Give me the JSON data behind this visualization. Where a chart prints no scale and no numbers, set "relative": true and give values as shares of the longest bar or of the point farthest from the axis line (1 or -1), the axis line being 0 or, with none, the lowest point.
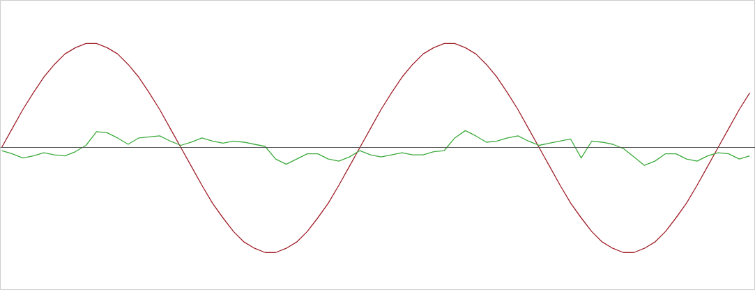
{
  "chart_data": {
    "type": "line",
    "relative": true,
    "categories": [
      null,
      null,
      null,
      null,
      null,
      null,
      null,
      null,
      null,
      null,
      null,
      null,
      null,
      null,
      null,
      null,
      null,
      null,
      null,
      null,
      null,
      null,
      null,
      null,
      null,
      null,
      null,
      null,
      null,
      null,
      null,
      null,
      null,
      null,
      null,
      null,
      null,
      null,
      null,
      null,
      null,
      null,
      null,
      null,
      null,
      null,
      null,
      null,
      null,
      null,
      null,
      null,
      null,
      null,
      null,
      null,
      null,
      null,
      null,
      null,
      null,
      null,
      null,
      null,
      null,
      null,
      null,
      null,
      null,
      null,
      null,
      null
    ],
    "series": [
      {
        "color": "#a0202a",
        "values": [
          0,
          0.18,
          0.36,
          0.52,
          0.67,
          0.79,
          0.89,
          0.95,
          0.99,
          0.99,
          0.95,
          0.89,
          0.79,
          0.67,
          0.52,
          0.36,
          0.18,
          0,
          -0.18,
          -0.36,
          -0.53,
          -0.67,
          -0.8,
          -0.9,
          -0.96,
          -1,
          -1,
          -0.96,
          -0.9,
          -0.8,
          -0.67,
          -0.53,
          -0.36,
          -0.18,
          0,
          0.18,
          0.36,
          0.52,
          0.67,
          0.79,
          0.89,
          0.95,
          0.99,
          0.99,
          0.95,
          0.89,
          0.79,
          0.67,
          0.52,
          0.36,
          0.18,
          0,
          -0.18,
          -0.36,
          -0.53,
          -0.67,
          -0.8,
          -0.9,
          -0.96,
          -1,
          -1,
          -0.96,
          -0.9,
          -0.8,
          -0.67,
          -0.53,
          -0.36,
          -0.18,
          0,
          0.18,
          0.36,
          0.52
        ]
      },
      {
        "color": "#3caa3c",
        "values": [
          -0.03,
          -0.06,
          -0.1,
          -0.08,
          -0.05,
          -0.07,
          -0.08,
          -0.04,
          0.02,
          0.15,
          0.14,
          0.09,
          0.03,
          0.09,
          0.1,
          0.11,
          0.06,
          0.02,
          0.05,
          0.09,
          0.06,
          0.04,
          0.06,
          0.05,
          0.03,
          0.01,
          -0.11,
          -0.16,
          -0.11,
          -0.06,
          -0.06,
          -0.11,
          -0.13,
          -0.09,
          -0.03,
          -0.07,
          -0.09,
          -0.07,
          -0.05,
          -0.07,
          -0.07,
          -0.04,
          -0.03,
          0.09,
          0.16,
          0.11,
          0.05,
          0.06,
          0.09,
          0.11,
          0.06,
          0.02,
          0.04,
          0.06,
          0.08,
          -0.1,
          0.06,
          0.05,
          0.03,
          -0.01,
          -0.09,
          -0.17,
          -0.13,
          -0.06,
          -0.06,
          -0.11,
          -0.13,
          -0.08,
          -0.05,
          -0.06,
          -0.11,
          -0.08
        ]
      }
    ]
  }
}
